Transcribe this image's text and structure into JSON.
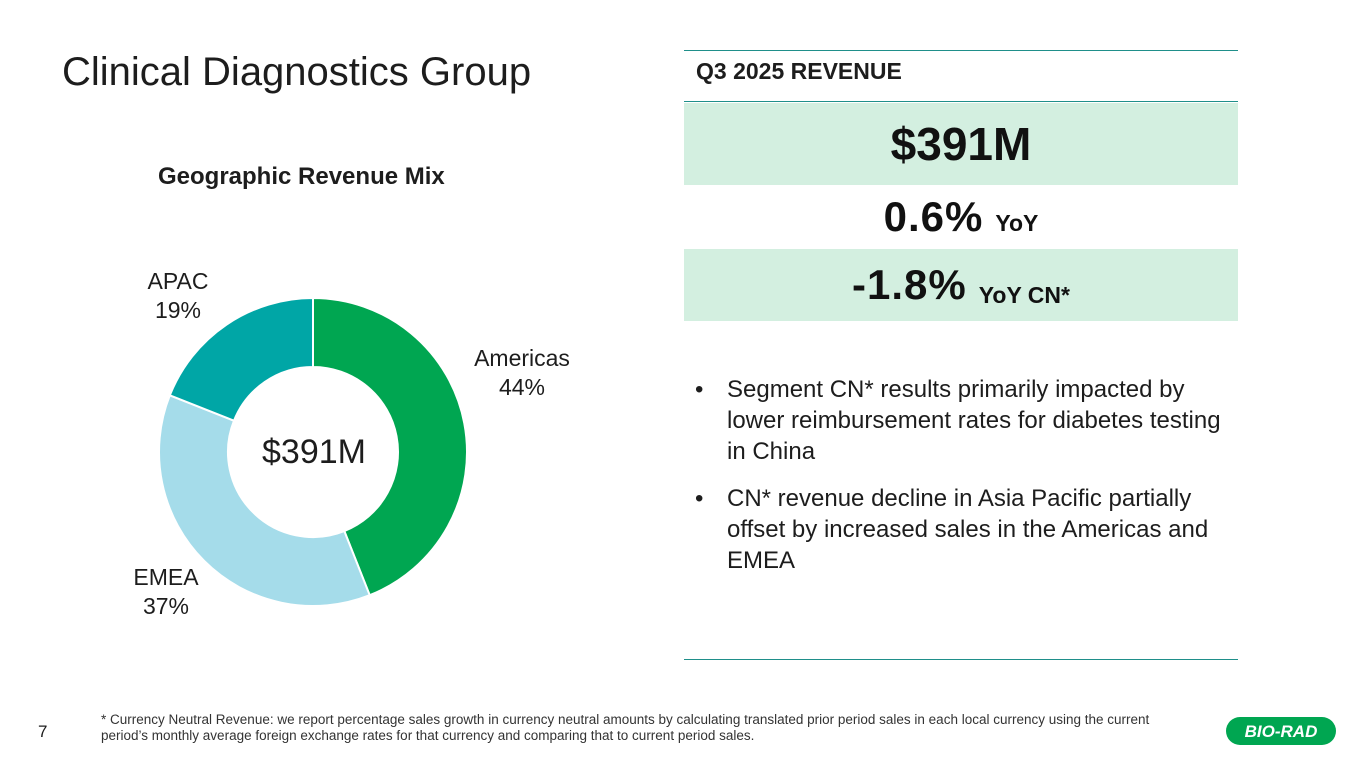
{
  "slide": {
    "title": "Clinical Diagnostics Group",
    "page_number": "7",
    "footnote": "* Currency Neutral Revenue: we report percentage sales growth in currency neutral amounts by calculating translated prior period sales in each local currency using the current period’s monthly average foreign exchange rates for that currency and comparing that to current period sales.",
    "logo_text": "BIO-RAD"
  },
  "chart_data": {
    "type": "pie",
    "subtype": "donut",
    "title": "Geographic Revenue Mix",
    "center_label": "$391M",
    "categories": [
      "Americas",
      "EMEA",
      "APAC"
    ],
    "values": [
      44,
      37,
      19
    ],
    "value_labels": [
      "44%",
      "37%",
      "19%"
    ],
    "colors": [
      "#00a651",
      "#a5dcea",
      "#00a6a6"
    ]
  },
  "revenue": {
    "header": "Q3 2025 REVENUE",
    "total": "$391M",
    "yoy_value": "0.6%",
    "yoy_label": "YoY",
    "yoy_cn_value": "-1.8%",
    "yoy_cn_label": "YoY CN*"
  },
  "bullets": [
    "Segment CN* results primarily impacted by lower reimbursement rates for diabetes testing in China",
    "CN* revenue decline in Asia Pacific partially offset by increased sales in the Americas and EMEA"
  ],
  "colors": {
    "accent_teal": "#1f8f8a",
    "band_green": "#d3efe0",
    "logo_green": "#00a651"
  }
}
